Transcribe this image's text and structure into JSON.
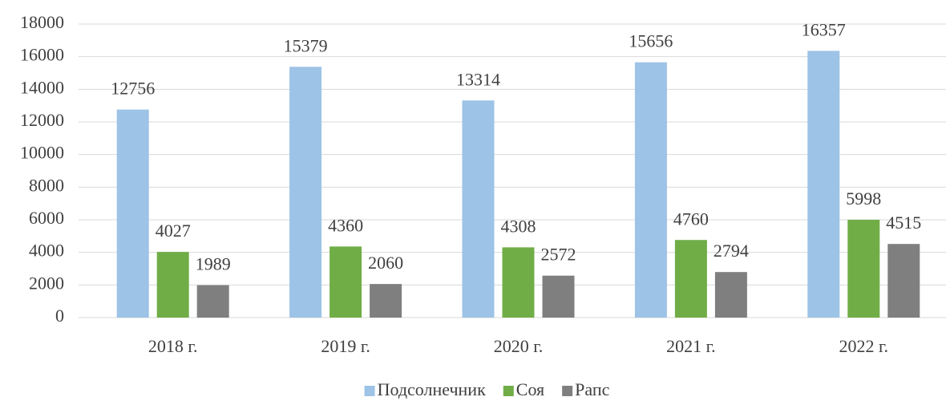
{
  "chart_data": {
    "type": "bar",
    "categories": [
      "2018 г.",
      "2019 г.",
      "2020 г.",
      "2021 г.",
      "2022 г."
    ],
    "series": [
      {
        "name": "Подсолнечник",
        "color": "#9dc3e6",
        "values": [
          12756,
          15379,
          13314,
          15656,
          16357
        ]
      },
      {
        "name": "Соя",
        "color": "#70ad47",
        "values": [
          4027,
          4360,
          4308,
          4760,
          5998
        ]
      },
      {
        "name": "Рапс",
        "color": "#7f7f7f",
        "values": [
          1989,
          2060,
          2572,
          2794,
          4515
        ]
      }
    ],
    "ylim": [
      0,
      18000
    ],
    "yticks": [
      0,
      2000,
      4000,
      6000,
      8000,
      10000,
      12000,
      14000,
      16000,
      18000
    ],
    "grid": true,
    "legend": "bottom"
  }
}
